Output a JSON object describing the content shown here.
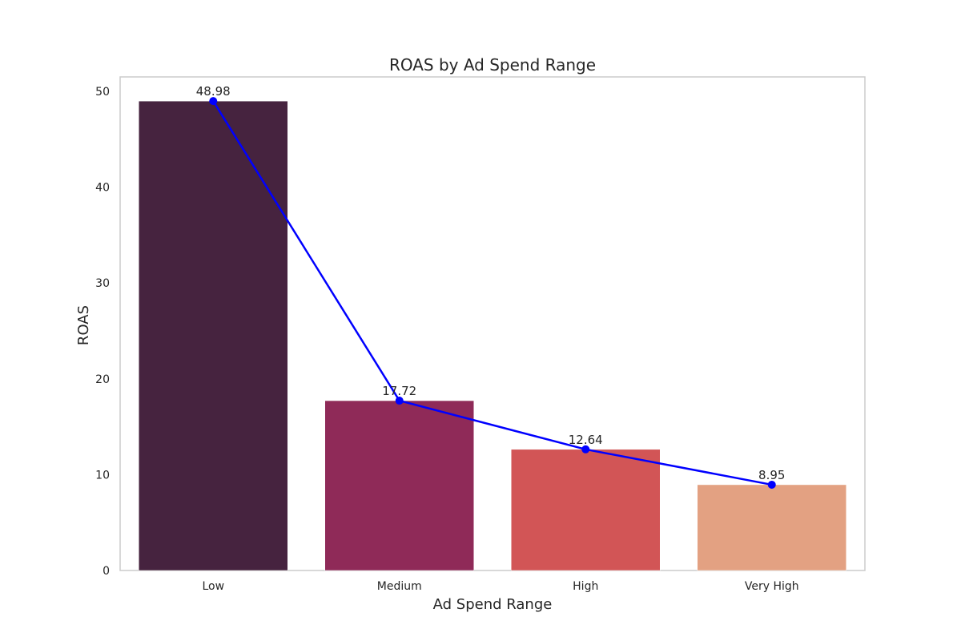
{
  "chart_data": {
    "type": "bar",
    "title": "ROAS by Ad Spend Range",
    "xlabel": "Ad Spend Range",
    "ylabel": "ROAS",
    "categories": [
      "Low",
      "Medium",
      "High",
      "Very High"
    ],
    "values": [
      48.98,
      17.72,
      12.64,
      8.95
    ],
    "data_labels": [
      "48.98",
      "17.72",
      "12.64",
      "8.95"
    ],
    "bar_colors": [
      "#46233f",
      "#8f2a58",
      "#d25556",
      "#e3a182"
    ],
    "ylim": [
      0,
      51.5
    ],
    "yticks": [
      0,
      10,
      20,
      30,
      40,
      50
    ],
    "overlay_line": {
      "type": "line",
      "values": [
        48.98,
        17.72,
        12.64,
        8.95
      ],
      "color": "#0000ff",
      "markers": true
    },
    "grid": false,
    "legend": "none"
  }
}
